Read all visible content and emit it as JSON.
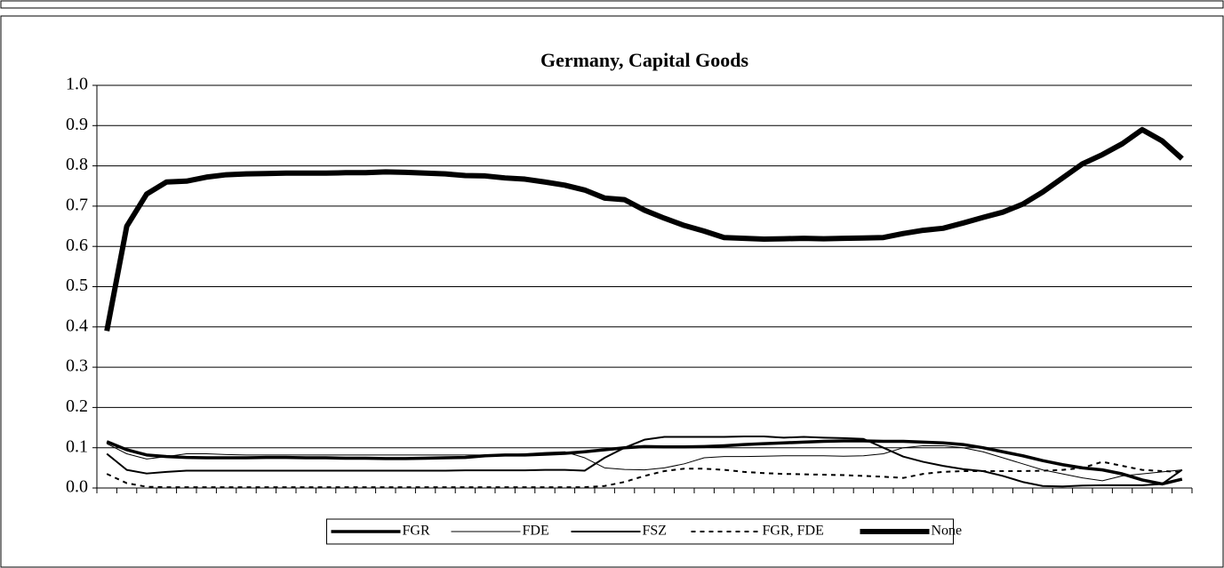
{
  "chart_data": {
    "type": "line",
    "title": "Germany, Capital Goods",
    "categories": [
      null,
      null,
      null,
      null,
      null,
      null,
      null,
      null,
      null,
      null,
      null,
      null,
      null,
      null,
      null,
      null,
      null,
      null,
      null,
      null,
      null,
      null,
      null,
      null,
      null,
      null,
      null,
      null,
      null,
      null,
      null,
      null,
      null,
      null,
      null,
      null,
      null,
      null,
      null,
      null,
      null,
      null,
      null,
      null,
      null,
      null,
      null,
      null,
      null,
      null,
      null,
      null,
      null,
      null,
      null
    ],
    "series": [
      {
        "name": "FGR",
        "color": "#000000",
        "values": [
          0.115,
          0.095,
          0.082,
          0.078,
          0.076,
          0.075,
          0.075,
          0.075,
          0.076,
          0.076,
          0.075,
          0.075,
          0.074,
          0.074,
          0.073,
          0.073,
          0.074,
          0.075,
          0.076,
          0.08,
          0.082,
          0.082,
          0.084,
          0.086,
          0.09,
          0.095,
          0.1,
          0.103,
          0.102,
          0.102,
          0.103,
          0.105,
          0.108,
          0.11,
          0.112,
          0.114,
          0.116,
          0.117,
          0.117,
          0.116,
          0.116,
          0.114,
          0.112,
          0.108,
          0.1,
          0.09,
          0.08,
          0.068,
          0.058,
          0.05,
          0.045,
          0.035,
          0.02,
          0.01,
          0.022
        ]
      },
      {
        "name": "FDE",
        "color": "#000000",
        "values": [
          0.11,
          0.085,
          0.072,
          0.078,
          0.085,
          0.085,
          0.083,
          0.082,
          0.082,
          0.082,
          0.082,
          0.082,
          0.082,
          0.082,
          0.082,
          0.082,
          0.082,
          0.082,
          0.082,
          0.082,
          0.082,
          0.085,
          0.088,
          0.09,
          0.075,
          0.05,
          0.046,
          0.045,
          0.05,
          0.06,
          0.075,
          0.078,
          0.078,
          0.079,
          0.08,
          0.08,
          0.08,
          0.079,
          0.08,
          0.085,
          0.1,
          0.105,
          0.105,
          0.1,
          0.09,
          0.075,
          0.06,
          0.045,
          0.035,
          0.025,
          0.018,
          0.03,
          0.035,
          0.04,
          0.045
        ]
      },
      {
        "name": "FSZ",
        "color": "#000000",
        "values": [
          0.085,
          0.045,
          0.036,
          0.04,
          0.043,
          0.043,
          0.043,
          0.043,
          0.043,
          0.043,
          0.043,
          0.043,
          0.043,
          0.043,
          0.043,
          0.043,
          0.043,
          0.043,
          0.044,
          0.044,
          0.044,
          0.044,
          0.045,
          0.045,
          0.043,
          0.075,
          0.1,
          0.12,
          0.127,
          0.127,
          0.127,
          0.127,
          0.128,
          0.128,
          0.125,
          0.127,
          0.125,
          0.124,
          0.122,
          0.1,
          0.078,
          0.065,
          0.055,
          0.047,
          0.042,
          0.03,
          0.015,
          0.005,
          0.004,
          0.006,
          0.007,
          0.007,
          0.007,
          0.01,
          0.045
        ]
      },
      {
        "name": "FGR, FDE",
        "color": "#000000",
        "values": [
          0.035,
          0.012,
          0.003,
          0.002,
          0.002,
          0.002,
          0.002,
          0.002,
          0.002,
          0.002,
          0.002,
          0.002,
          0.002,
          0.002,
          0.002,
          0.002,
          0.002,
          0.002,
          0.002,
          0.002,
          0.002,
          0.002,
          0.002,
          0.002,
          0.002,
          0.005,
          0.015,
          0.03,
          0.042,
          0.048,
          0.048,
          0.045,
          0.04,
          0.037,
          0.035,
          0.034,
          0.033,
          0.032,
          0.03,
          0.028,
          0.025,
          0.035,
          0.04,
          0.042,
          0.042,
          0.042,
          0.042,
          0.043,
          0.045,
          0.05,
          0.065,
          0.055,
          0.045,
          0.042,
          0.04
        ]
      },
      {
        "name": "None",
        "color": "#000000",
        "values": [
          0.39,
          0.65,
          0.73,
          0.76,
          0.762,
          0.772,
          0.778,
          0.78,
          0.781,
          0.782,
          0.782,
          0.782,
          0.783,
          0.783,
          0.785,
          0.784,
          0.782,
          0.78,
          0.776,
          0.775,
          0.77,
          0.767,
          0.76,
          0.752,
          0.74,
          0.72,
          0.716,
          0.69,
          0.67,
          0.652,
          0.638,
          0.622,
          0.62,
          0.618,
          0.619,
          0.62,
          0.619,
          0.62,
          0.621,
          0.622,
          0.632,
          0.64,
          0.645,
          0.658,
          0.672,
          0.685,
          0.705,
          0.735,
          0.77,
          0.805,
          0.828,
          0.855,
          0.89,
          0.862,
          0.818
        ]
      }
    ],
    "ylim": [
      0,
      1
    ],
    "yticks": [
      {
        "value": 0,
        "label": "0.0"
      },
      0.1,
      0.2,
      0.3,
      0.4,
      0.5,
      0.6,
      0.7,
      0.8,
      0.9,
      {
        "value": 1,
        "label": "1.0"
      }
    ],
    "grid": true,
    "legend": "bottom"
  }
}
